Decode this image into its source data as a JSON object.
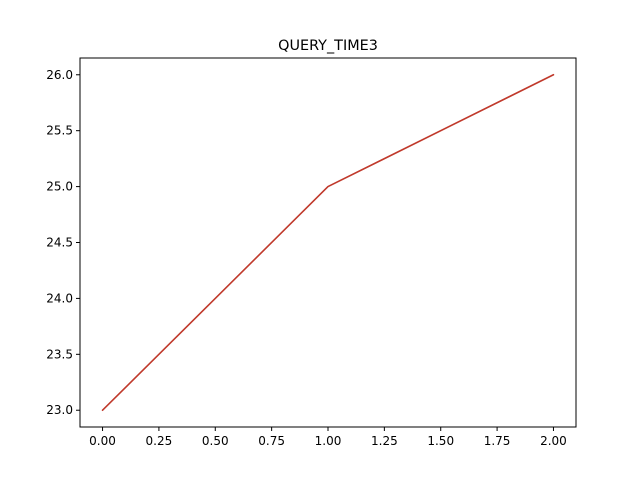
{
  "chart_data": {
    "type": "line",
    "title": "QUERY_TIME3",
    "xlabel": "",
    "ylabel": "",
    "x": [
      0,
      1,
      2
    ],
    "series": [
      {
        "values": [
          23,
          25,
          26
        ],
        "color": "#c0392b"
      }
    ],
    "xlim": [
      -0.1,
      2.1
    ],
    "ylim": [
      22.85,
      26.15
    ],
    "xticks": [
      0,
      0.25,
      0.5,
      0.75,
      1,
      1.25,
      1.5,
      1.75,
      2
    ],
    "xtick_labels": [
      "0.00",
      "0.25",
      "0.50",
      "0.75",
      "1.00",
      "1.25",
      "1.50",
      "1.75",
      "2.00"
    ],
    "yticks": [
      23,
      23.5,
      24,
      24.5,
      25,
      25.5,
      26
    ],
    "ytick_labels": [
      "23.0",
      "23.5",
      "24.0",
      "24.5",
      "25.0",
      "25.5",
      "26.0"
    ],
    "grid": false,
    "legend": "none"
  }
}
